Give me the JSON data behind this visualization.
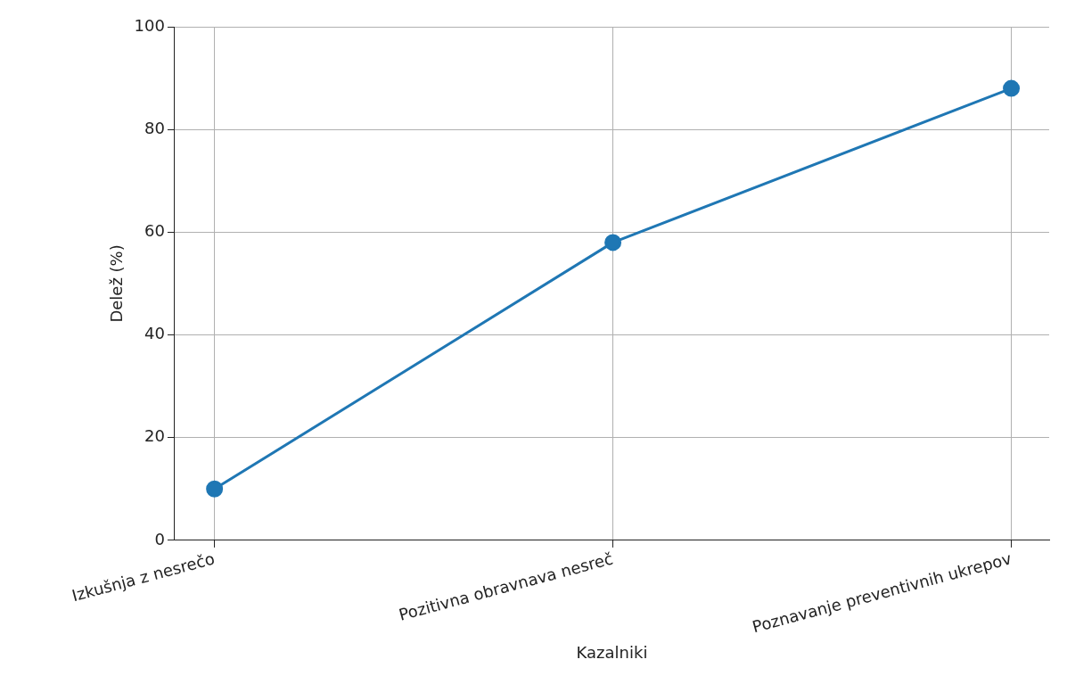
{
  "chart_data": {
    "type": "line",
    "xlabel": "Kazalniki",
    "ylabel": "Delež (%)",
    "categories": [
      "Izkušnja z nesrečo",
      "Pozitivna obravnava nesreč",
      "Poznavanje preventivnih ukrepov"
    ],
    "series": [
      {
        "color": "#1f77b4",
        "values": [
          10,
          58,
          88
        ]
      }
    ],
    "ylim": [
      0,
      100
    ],
    "yticks": [
      0,
      20,
      40,
      60,
      80,
      100
    ],
    "grid": true,
    "legend": false,
    "marker": "circle",
    "line_style": "solid"
  }
}
